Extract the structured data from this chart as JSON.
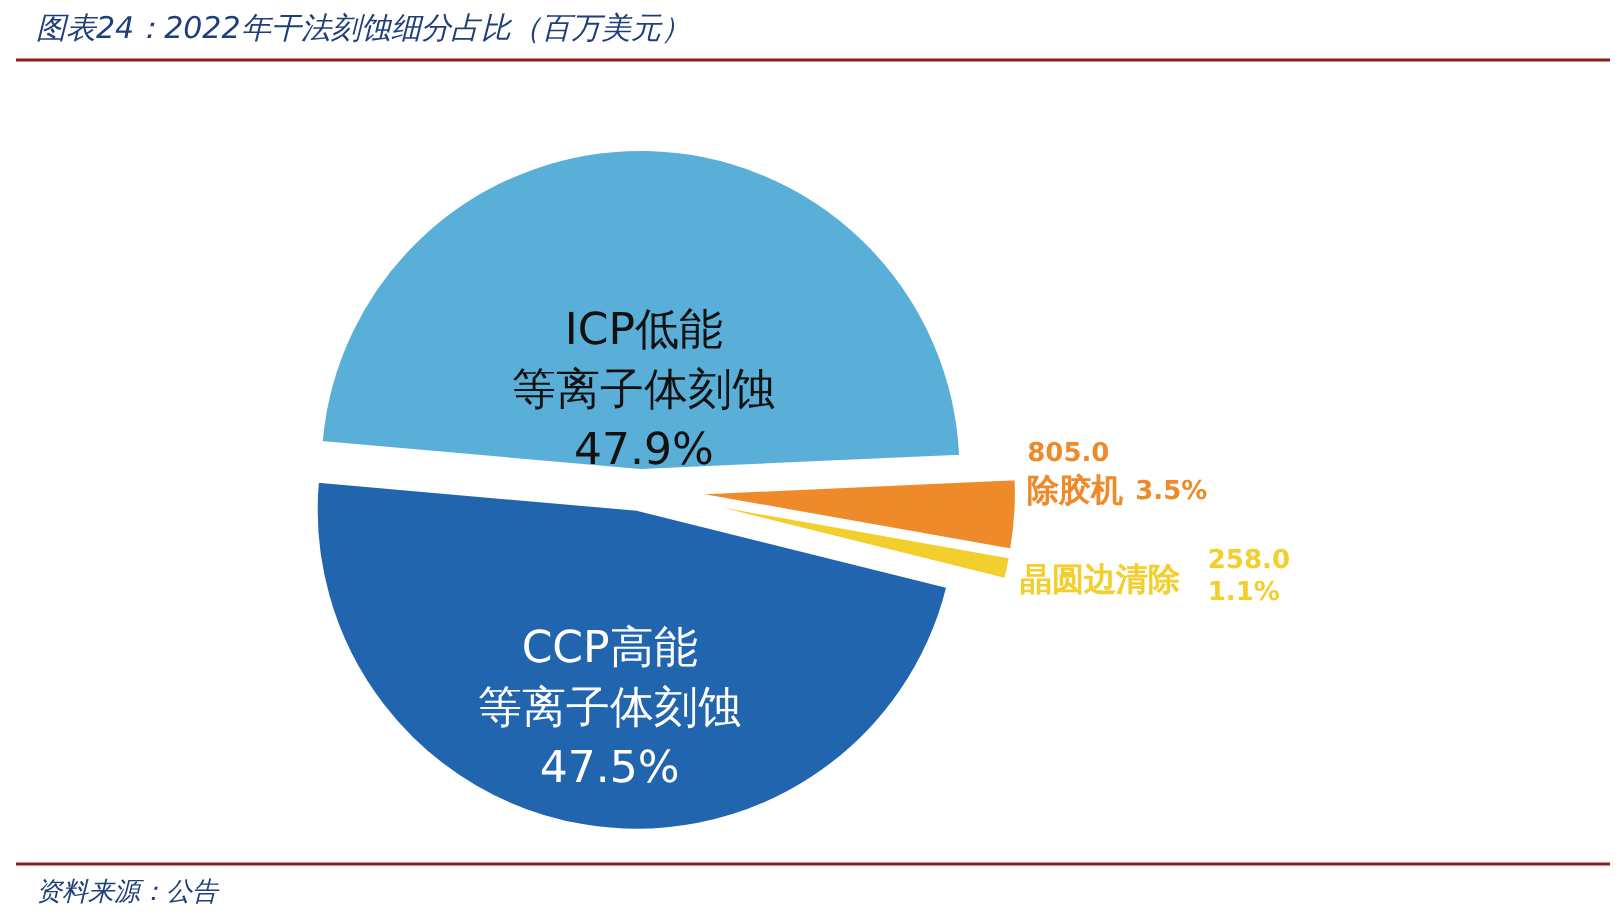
{
  "chart_data": {
    "type": "pie",
    "title": "图表24：2022年干法刻蚀细分占比（百万美元）",
    "categories": [
      "ICP低能等离子体刻蚀",
      "除胶机",
      "晶圆边清除",
      "CCP高能等离子体刻蚀"
    ],
    "values": [
      47.9,
      3.5,
      1.1,
      47.5
    ],
    "colors": [
      "#5aafd8",
      "#ee8a2a",
      "#f2cf2c",
      "#2165ae"
    ],
    "value_labels": [
      "47.9%",
      "3.5%",
      "1.1%",
      "47.5%"
    ],
    "annotations": [
      {
        "text": "805.0",
        "x": "除胶机"
      },
      {
        "text": "258.0",
        "x": "晶圆边清除"
      },
      "资料来源：公告"
    ]
  }
}
